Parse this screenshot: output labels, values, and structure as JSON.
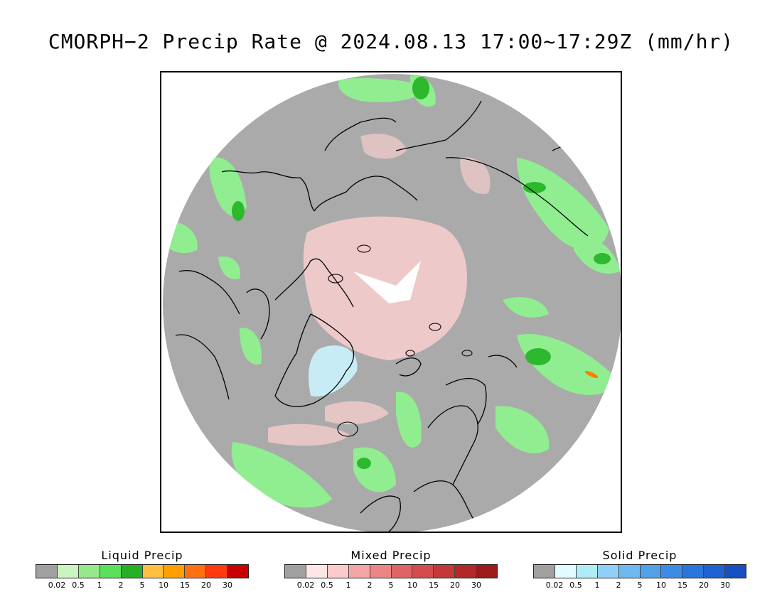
{
  "title": "CMORPH−2 Precip Rate @ 2024.08.13 17:00~17:29Z (mm/hr)",
  "map": {
    "background_color": "#aaaaaa",
    "coastline_color": "#000000",
    "liquid_color": "#90ee90",
    "liquid_dark_color": "#2db82d",
    "mixed_color": "#f5cccc",
    "solid_color": "#c8ecf5",
    "hot_color": "#ff7f00"
  },
  "legends": [
    {
      "title": "Liquid Precip",
      "colors": [
        "#a0a0a0",
        "#c8f5c0",
        "#96e88c",
        "#5ae05a",
        "#26b026",
        "#ffc040",
        "#ffa000",
        "#ff7010",
        "#ff3a10",
        "#c80000"
      ],
      "ticks": [
        "0.02",
        "0.5",
        "1",
        "2",
        "5",
        "10",
        "15",
        "20",
        "30"
      ]
    },
    {
      "title": "Mixed Precip",
      "colors": [
        "#a0a0a0",
        "#ffe6e6",
        "#fccaca",
        "#f4a5a5",
        "#ec8585",
        "#e06464",
        "#d44c4c",
        "#c43838",
        "#b42828",
        "#9e1a1a"
      ],
      "ticks": [
        "0.02",
        "0.5",
        "1",
        "2",
        "5",
        "10",
        "15",
        "20",
        "30"
      ]
    },
    {
      "title": "Solid Precip",
      "colors": [
        "#a0a0a0",
        "#e0fcff",
        "#b0ecf8",
        "#90d0f8",
        "#70b8f0",
        "#50a0ec",
        "#3c8ce6",
        "#2a76dc",
        "#1e62d2",
        "#1450c0"
      ],
      "ticks": [
        "0.02",
        "0.5",
        "1",
        "2",
        "5",
        "10",
        "15",
        "20",
        "30"
      ]
    }
  ]
}
